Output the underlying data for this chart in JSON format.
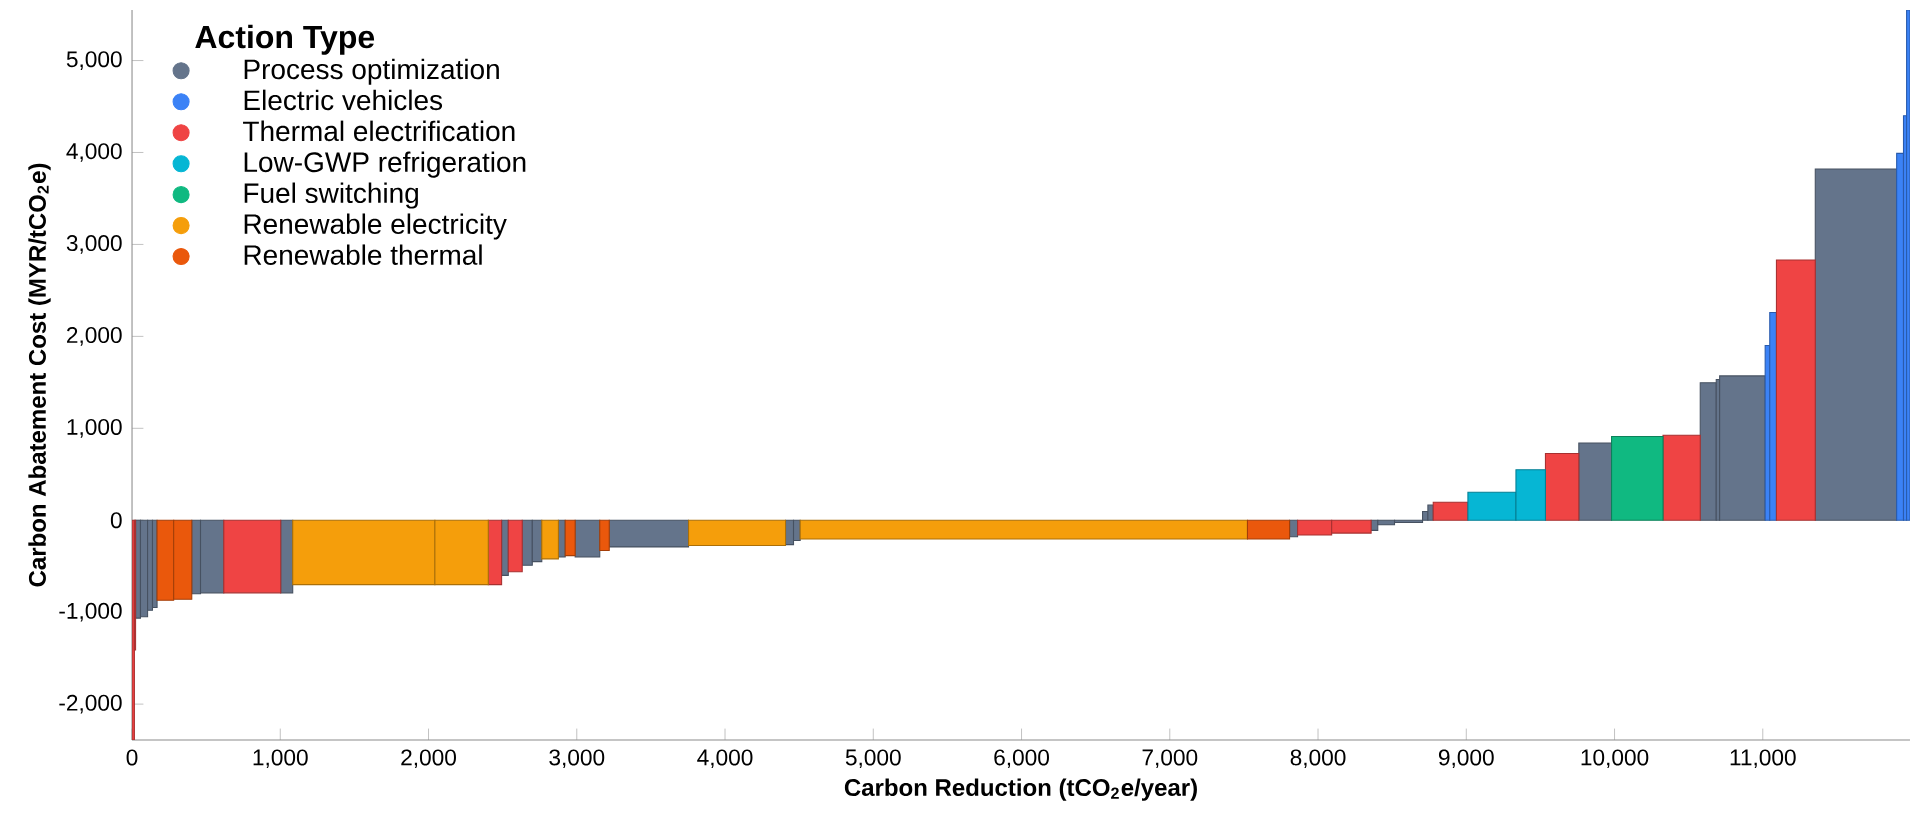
{
  "chart_data": {
    "type": "histogram",
    "xlabel": "Carbon Reduction (tCO$_{2}$e/year)",
    "ylabel": "Carbon Abatement Cost (MYR/tCO$_{2}$e)",
    "legend_title": "Action Type",
    "legend": "top left",
    "bins": [
      0,
      16,
      24,
      57,
      105,
      138,
      169,
      281,
      403,
      462,
      619,
      1003,
      1084,
      2043,
      2403,
      2493,
      2538,
      2632,
      2700,
      2764,
      2876,
      2922,
      2989,
      3155,
      3219,
      3754,
      4408,
      4462,
      4507,
      7524,
      7808,
      7862,
      8092,
      8358,
      8403,
      8516,
      8705,
      8741,
      8777,
      9011,
      9335,
      9534,
      9759,
      9980,
      10327,
      10578,
      10686,
      10709,
      11016,
      11047,
      11092,
      11354,
      11903,
      11949,
      11970,
      11993
    ],
    "xlim": [
      0,
      11993
    ],
    "ylim": [
      -2390,
      5550
    ],
    "xticks": [
      0,
      {
        "value": 1000,
        "label": "1,000"
      },
      {
        "value": 2000,
        "label": "2,000"
      },
      {
        "value": 3000,
        "label": "3,000"
      },
      {
        "value": 4000,
        "label": "4,000"
      },
      {
        "value": 5000,
        "label": "5,000"
      },
      {
        "value": 6000,
        "label": "6,000"
      },
      {
        "value": 7000,
        "label": "7,000"
      },
      {
        "value": 8000,
        "label": "8,000"
      },
      {
        "value": 9000,
        "label": "9,000"
      },
      {
        "value": 10000,
        "label": "10,000"
      },
      {
        "value": 11000,
        "label": "11,000"
      }
    ],
    "yticks": [
      {
        "value": -2000,
        "label": "-2,000"
      },
      {
        "value": -1000,
        "label": "-1,000"
      },
      0,
      {
        "value": 1000,
        "label": "1,000"
      },
      {
        "value": 2000,
        "label": "2,000"
      },
      {
        "value": 3000,
        "label": "3,000"
      },
      {
        "value": 4000,
        "label": "4,000"
      },
      {
        "value": 5000,
        "label": "5,000"
      }
    ],
    "series": [
      {
        "name": "Process optimization",
        "color": "#64748b",
        "values": [
          null,
          null,
          -1065,
          -1050,
          -980,
          -950,
          null,
          null,
          -800,
          -790,
          null,
          -790,
          null,
          null,
          null,
          -600,
          null,
          -490,
          -450,
          null,
          -400,
          null,
          -400,
          null,
          -290,
          null,
          -265,
          -220,
          null,
          null,
          -180,
          null,
          null,
          -110,
          -50,
          -25,
          95,
          165,
          null,
          null,
          null,
          null,
          840,
          null,
          null,
          1495,
          1530,
          1570,
          null,
          null,
          null,
          3820,
          null,
          null,
          null
        ]
      },
      {
        "name": "Electric vehicles",
        "color": "#3b82f6",
        "values": [
          null,
          null,
          null,
          null,
          null,
          null,
          null,
          null,
          null,
          null,
          null,
          null,
          null,
          null,
          null,
          null,
          null,
          null,
          null,
          null,
          null,
          null,
          null,
          null,
          null,
          null,
          null,
          null,
          null,
          null,
          null,
          null,
          null,
          null,
          null,
          null,
          null,
          null,
          null,
          null,
          null,
          null,
          null,
          null,
          null,
          null,
          null,
          null,
          1900,
          2260,
          null,
          null,
          3990,
          4400,
          5550
        ]
      },
      {
        "name": "Thermal electrification",
        "color": "#ef4444",
        "values": [
          -2390,
          -1410,
          null,
          null,
          null,
          null,
          null,
          null,
          null,
          null,
          -790,
          null,
          null,
          null,
          -700,
          null,
          -560,
          null,
          null,
          null,
          null,
          null,
          null,
          null,
          null,
          null,
          null,
          null,
          null,
          null,
          null,
          -160,
          -140,
          null,
          null,
          null,
          null,
          null,
          195,
          null,
          null,
          725,
          null,
          null,
          925,
          null,
          null,
          null,
          null,
          null,
          2830,
          null,
          null,
          null,
          null
        ]
      },
      {
        "name": "Low-GWP refrigeration",
        "color": "#06b6d4",
        "values": [
          null,
          null,
          null,
          null,
          null,
          null,
          null,
          null,
          null,
          null,
          null,
          null,
          null,
          null,
          null,
          null,
          null,
          null,
          null,
          null,
          null,
          null,
          null,
          null,
          null,
          null,
          null,
          null,
          null,
          null,
          null,
          null,
          null,
          null,
          null,
          null,
          null,
          null,
          null,
          305,
          550,
          null,
          null,
          null,
          null,
          null,
          null,
          null,
          null,
          null,
          null,
          null,
          null,
          null,
          null
        ]
      },
      {
        "name": "Fuel switching",
        "color": "#10b981",
        "values": [
          null,
          null,
          null,
          null,
          null,
          null,
          null,
          null,
          null,
          null,
          null,
          null,
          null,
          null,
          null,
          null,
          null,
          null,
          null,
          null,
          null,
          null,
          null,
          null,
          null,
          null,
          null,
          null,
          null,
          null,
          null,
          null,
          null,
          null,
          null,
          null,
          null,
          null,
          null,
          null,
          null,
          null,
          null,
          910,
          null,
          null,
          null,
          null,
          null,
          null,
          null,
          null,
          null,
          null,
          null
        ]
      },
      {
        "name": "Renewable electricity",
        "color": "#f59e0b",
        "values": [
          null,
          null,
          null,
          null,
          null,
          null,
          null,
          null,
          null,
          null,
          null,
          null,
          -700,
          -700,
          null,
          null,
          null,
          null,
          null,
          -420,
          null,
          null,
          null,
          null,
          null,
          -275,
          null,
          null,
          -205,
          null,
          null,
          null,
          null,
          null,
          null,
          null,
          null,
          null,
          null,
          null,
          null,
          null,
          null,
          null,
          null,
          null,
          null,
          null,
          null,
          null,
          null,
          null,
          null,
          null,
          null
        ]
      },
      {
        "name": "Renewable thermal",
        "color": "#ea580c",
        "values": [
          null,
          null,
          null,
          null,
          null,
          null,
          -870,
          -860,
          null,
          null,
          null,
          null,
          null,
          null,
          null,
          null,
          null,
          null,
          null,
          null,
          null,
          -385,
          null,
          -330,
          null,
          null,
          null,
          null,
          null,
          -205,
          null,
          null,
          null,
          null,
          null,
          null,
          null,
          null,
          null,
          null,
          null,
          null,
          null,
          null,
          null,
          null,
          null,
          null,
          null,
          null,
          null,
          null,
          null,
          null,
          null
        ]
      }
    ]
  }
}
